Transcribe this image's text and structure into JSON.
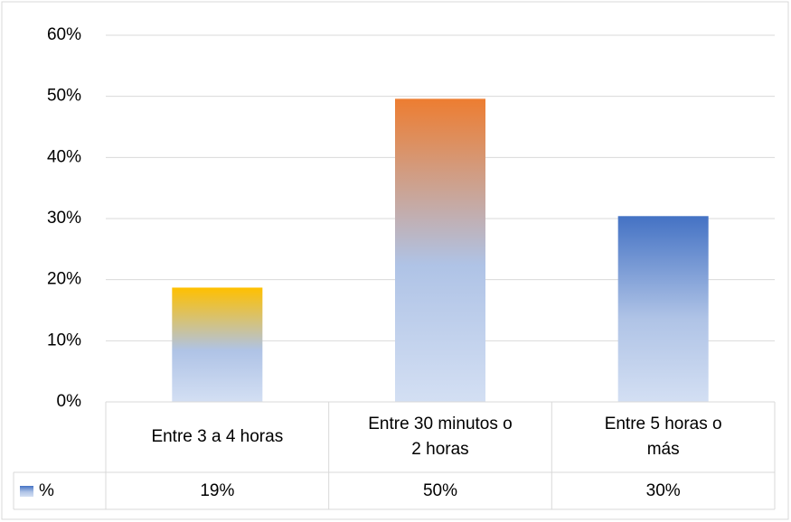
{
  "chart_data": {
    "type": "bar",
    "categories": [
      "Entre 3 a 4 horas",
      "Entre 30 minutos o 2 horas",
      "Entre 5 horas o más"
    ],
    "series": [
      {
        "name": "%",
        "color": "#4472c4",
        "colors": [
          "#ffc000",
          "#ed7d31",
          "#4472c4"
        ],
        "values": [
          18.7,
          49.6,
          30.4
        ],
        "value_labels": [
          "19%",
          "50%",
          "30%"
        ]
      }
    ],
    "ylim": [
      0,
      60
    ],
    "yticks": [
      {
        "value": 0,
        "label": "0%"
      },
      {
        "value": 10,
        "label": "10%"
      },
      {
        "value": 20,
        "label": "20%"
      },
      {
        "value": 30,
        "label": "30%"
      },
      {
        "value": 40,
        "label": "40%"
      },
      {
        "value": 50,
        "label": "50%"
      },
      {
        "value": 60,
        "label": "60%"
      }
    ],
    "grid": true,
    "data_table": true
  }
}
